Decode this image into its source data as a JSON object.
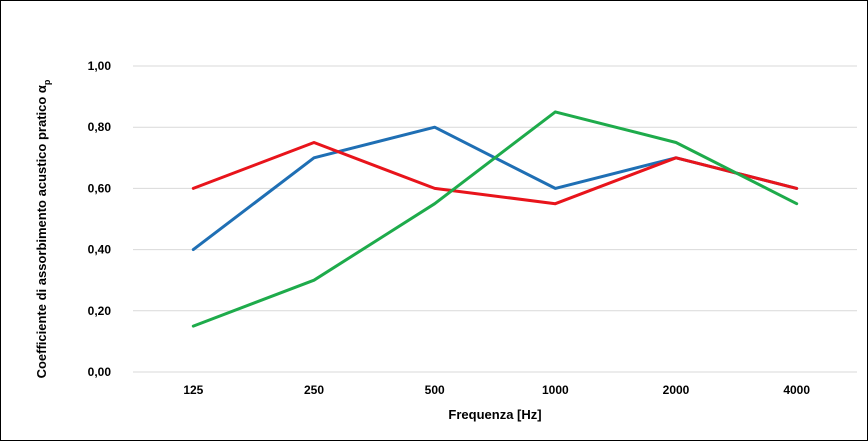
{
  "chart_data": {
    "type": "line",
    "title": "",
    "xlabel": "Frequenza [Hz]",
    "ylabel": "Coefficiente di assorbimento acustico pratico α",
    "ylabel_subscript": "p",
    "categories": [
      "125",
      "250",
      "500",
      "1000",
      "2000",
      "4000"
    ],
    "ylim": [
      0,
      1
    ],
    "y_ticks": [
      "0,00",
      "0,20",
      "0,40",
      "0,60",
      "0,80",
      "1,00"
    ],
    "grid": true,
    "legend": "none",
    "series": [
      {
        "color": "#1f6fb4",
        "values": [
          0.4,
          0.7,
          0.8,
          0.6,
          0.7,
          0.6
        ]
      },
      {
        "color": "#e8141b",
        "values": [
          0.6,
          0.75,
          0.6,
          0.55,
          0.7,
          0.6
        ]
      },
      {
        "color": "#1eab4b",
        "values": [
          0.15,
          0.3,
          0.55,
          0.85,
          0.75,
          0.55
        ]
      }
    ]
  }
}
